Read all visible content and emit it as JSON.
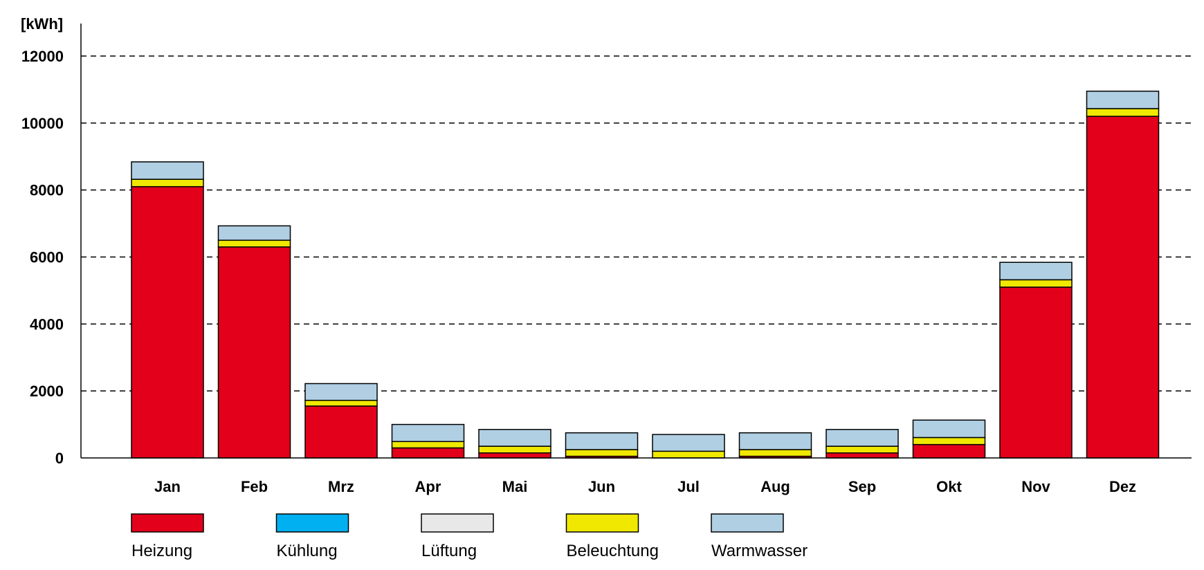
{
  "chart_data": {
    "type": "bar",
    "stacked": true,
    "title": "",
    "xlabel": "",
    "ylabel": "[kWh]",
    "ylim": [
      0,
      12000
    ],
    "yticks": [
      0,
      2000,
      4000,
      6000,
      8000,
      10000,
      12000
    ],
    "grid": "horizontal dashed",
    "legend_position": "bottom",
    "categories": [
      "Jan",
      "Feb",
      "Mrz",
      "Apr",
      "Mai",
      "Jun",
      "Jul",
      "Aug",
      "Sep",
      "Okt",
      "Nov",
      "Dez"
    ],
    "series": [
      {
        "name": "Heizung",
        "color": "#e3001b",
        "values": [
          8100,
          6300,
          1550,
          300,
          150,
          50,
          0,
          50,
          150,
          400,
          5100,
          10200
        ]
      },
      {
        "name": "Kühlung",
        "color": "#00b0f0",
        "values": [
          0,
          0,
          0,
          0,
          0,
          0,
          0,
          0,
          0,
          0,
          0,
          0
        ]
      },
      {
        "name": "Lüftung",
        "color": "#e8e8e8",
        "values": [
          0,
          0,
          0,
          0,
          0,
          0,
          0,
          0,
          0,
          0,
          0,
          0
        ]
      },
      {
        "name": "Beleuchtung",
        "color": "#f0e800",
        "values": [
          220,
          200,
          170,
          190,
          200,
          200,
          200,
          200,
          200,
          210,
          220,
          230
        ]
      },
      {
        "name": "Warmwasser",
        "color": "#b0cfe3",
        "values": [
          520,
          430,
          500,
          510,
          500,
          500,
          500,
          500,
          500,
          520,
          520,
          520
        ]
      }
    ]
  }
}
